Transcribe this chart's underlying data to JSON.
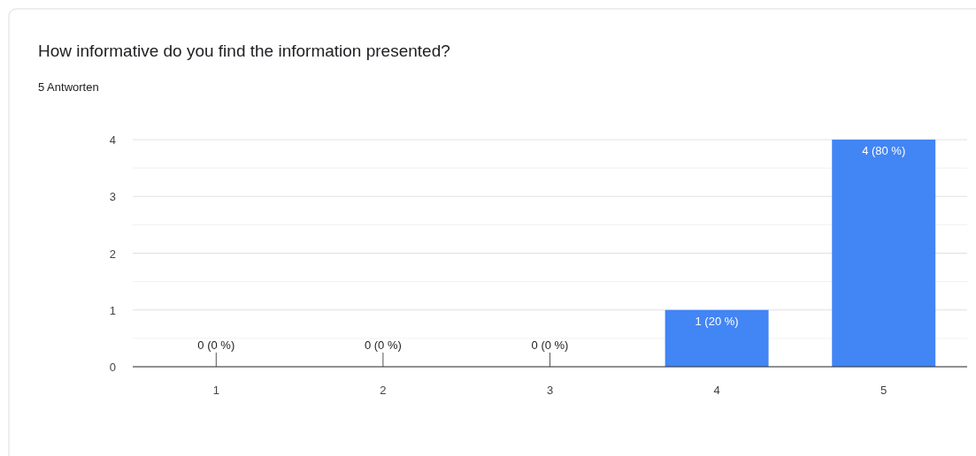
{
  "chart_data": {
    "type": "bar",
    "title": "How informative do you find the information presented?",
    "subtitle": "5 Antworten",
    "categories": [
      "1",
      "2",
      "3",
      "4",
      "5"
    ],
    "values": [
      0,
      0,
      0,
      1,
      4
    ],
    "value_labels": [
      "0 (0 %)",
      "0 (0 %)",
      "0 (0 %)",
      "1 (20 %)",
      "4 (80 %)"
    ],
    "color": "#4285f4",
    "ylim": [
      0,
      4
    ],
    "yticks": [
      0,
      {
        "value": 0.5,
        "label": null
      },
      1,
      {
        "value": 1.5,
        "label": null
      },
      2,
      {
        "value": 2.5,
        "label": null
      },
      3,
      {
        "value": 3.5,
        "label": null
      },
      4
    ],
    "grid": "y"
  }
}
